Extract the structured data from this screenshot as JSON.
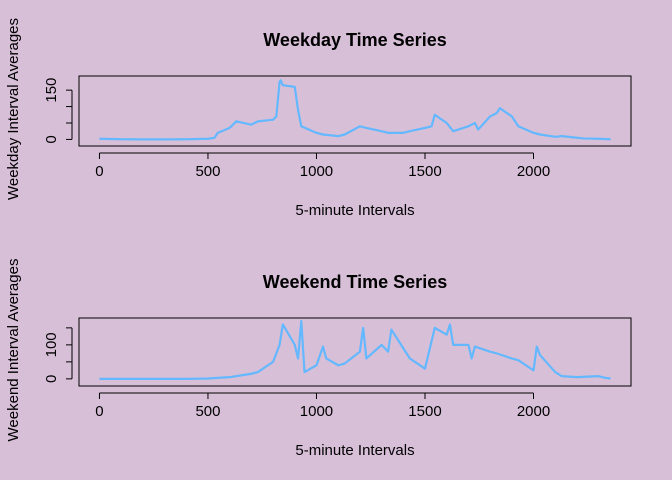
{
  "chart_data": [
    {
      "type": "line",
      "title": "Weekday Time Series",
      "x_label": "5-minute Intervals",
      "y_label": "Weekday Interval Averages",
      "color": "#63b8ff",
      "x": [
        0,
        100,
        200,
        300,
        400,
        500,
        530,
        545,
        600,
        630,
        700,
        730,
        800,
        815,
        830,
        835,
        845,
        900,
        915,
        930,
        1000,
        1030,
        1100,
        1130,
        1200,
        1230,
        1300,
        1330,
        1400,
        1430,
        1500,
        1530,
        1545,
        1600,
        1630,
        1700,
        1730,
        1745,
        1800,
        1830,
        1845,
        1900,
        1930,
        2000,
        2030,
        2100,
        2130,
        2200,
        2230,
        2300,
        2355
      ],
      "values": [
        2,
        0.5,
        0.2,
        0.1,
        0.5,
        2,
        5,
        20,
        35,
        55,
        45,
        55,
        60,
        70,
        175,
        180,
        165,
        160,
        90,
        40,
        20,
        15,
        10,
        15,
        40,
        35,
        25,
        20,
        20,
        25,
        35,
        40,
        75,
        50,
        25,
        40,
        50,
        30,
        70,
        80,
        95,
        70,
        40,
        20,
        15,
        8,
        10,
        5,
        3,
        2,
        0.5
      ],
      "xlim": [
        -94.2,
        2449.2
      ],
      "xticks": [
        0,
        500,
        1000,
        1500,
        2000
      ],
      "ylim": [
        -20,
        193
      ],
      "yticks": [
        0,
        150
      ],
      "yticks_unlabeled": [
        50,
        100
      ]
    },
    {
      "type": "line",
      "title": "Weekend Time Series",
      "x_label": "5-minute Intervals",
      "y_label": "Weekend Interval Averages",
      "color": "#63b8ff",
      "x": [
        0,
        100,
        200,
        300,
        400,
        500,
        600,
        700,
        730,
        800,
        830,
        845,
        900,
        915,
        930,
        945,
        1000,
        1030,
        1045,
        1100,
        1130,
        1200,
        1215,
        1230,
        1300,
        1330,
        1345,
        1400,
        1430,
        1500,
        1530,
        1545,
        1600,
        1615,
        1630,
        1700,
        1715,
        1730,
        1800,
        1830,
        1900,
        1930,
        2000,
        2015,
        2030,
        2100,
        2130,
        2200,
        2300,
        2330,
        2355
      ],
      "values": [
        0,
        0,
        0,
        0,
        0,
        1,
        5,
        15,
        20,
        50,
        100,
        160,
        100,
        60,
        170,
        20,
        40,
        95,
        60,
        40,
        45,
        80,
        150,
        60,
        100,
        80,
        145,
        90,
        60,
        30,
        110,
        150,
        130,
        160,
        100,
        100,
        60,
        95,
        80,
        75,
        60,
        55,
        25,
        95,
        70,
        20,
        8,
        5,
        8,
        3,
        1
      ],
      "xlim": [
        -94.2,
        2449.2
      ],
      "xticks": [
        0,
        500,
        1000,
        1500,
        2000
      ],
      "ylim": [
        -21,
        179
      ],
      "yticks": [
        0,
        100
      ],
      "yticks_unlabeled": [
        50,
        150
      ]
    }
  ]
}
